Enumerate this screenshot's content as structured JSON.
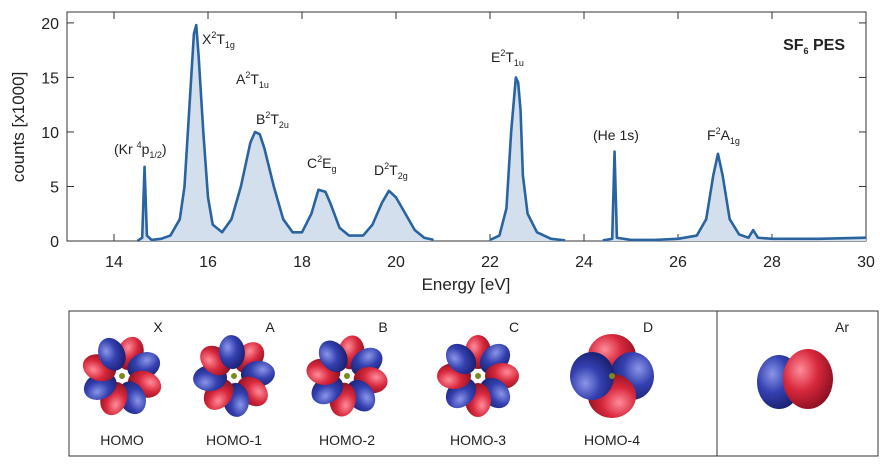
{
  "chart_data": {
    "type": "line",
    "title": [
      [
        "SF",
        ""
      ],
      [
        "6",
        "sub"
      ],
      [
        " PES",
        ""
      ]
    ],
    "xlabel": "Energy [eV]",
    "ylabel": "counts [x1000]",
    "xlim": [
      13,
      30
    ],
    "ylim": [
      0,
      21
    ],
    "xticks": [
      14,
      16,
      18,
      20,
      22,
      24,
      26,
      28,
      30
    ],
    "yticks": [
      0,
      5,
      10,
      15,
      20
    ],
    "color": "#2a64a0",
    "fill": "#d3dfec",
    "x": [
      14.5,
      14.6,
      14.65,
      14.7,
      14.8,
      15.0,
      15.2,
      15.4,
      15.5,
      15.6,
      15.7,
      15.75,
      15.8,
      15.9,
      16.0,
      16.1,
      16.3,
      16.5,
      16.7,
      16.9,
      17.0,
      17.1,
      17.2,
      17.4,
      17.6,
      17.8,
      18.0,
      18.2,
      18.35,
      18.5,
      18.6,
      18.8,
      19.0,
      19.3,
      19.5,
      19.7,
      19.85,
      20.0,
      20.2,
      20.4,
      20.6,
      20.8,
      21.4,
      22.0,
      22.2,
      22.35,
      22.45,
      22.55,
      22.6,
      22.65,
      22.7,
      22.8,
      23.0,
      23.3,
      23.6,
      24.0,
      24.4,
      24.6,
      24.65,
      24.7,
      25.0,
      25.5,
      26.0,
      26.4,
      26.6,
      26.75,
      26.85,
      26.95,
      27.1,
      27.3,
      27.5,
      27.6,
      27.7,
      28.0,
      29.0,
      30.0
    ],
    "values": [
      0,
      0.3,
      6.8,
      0.5,
      0.1,
      0.2,
      0.5,
      2,
      5,
      12,
      19,
      19.8,
      17,
      10,
      4,
      1.5,
      0.8,
      2,
      5,
      9,
      10,
      9.8,
      8.5,
      5,
      2,
      0.8,
      0.8,
      2.5,
      4.7,
      4.5,
      3.5,
      1.2,
      0.5,
      0.5,
      1.5,
      3.5,
      4.6,
      4,
      2.5,
      1,
      0.3,
      0.1,
      null,
      0.1,
      0.5,
      3,
      10,
      15,
      14.5,
      12,
      6,
      2.5,
      0.8,
      0.2,
      0.05,
      null,
      0.05,
      0.2,
      8.2,
      0.3,
      0.1,
      0.1,
      0.2,
      0.5,
      2,
      6,
      8,
      6,
      2,
      0.6,
      0.3,
      1,
      0.3,
      0.2,
      0.2,
      0.3
    ],
    "annotations": [
      [
        [
          "(Kr ",
          ""
        ],
        [
          "4",
          "sup"
        ],
        [
          "p",
          ""
        ],
        [
          "1/2",
          "sub"
        ],
        [
          ")",
          ""
        ]
      ],
      [
        [
          "X",
          ""
        ],
        [
          "2",
          "sup"
        ],
        [
          "T",
          ""
        ],
        [
          "1g",
          "sub"
        ]
      ],
      [
        [
          "A",
          ""
        ],
        [
          "2",
          "sup"
        ],
        [
          "T",
          ""
        ],
        [
          "1u",
          "sub"
        ]
      ],
      [
        [
          "B",
          ""
        ],
        [
          "2",
          "sup"
        ],
        [
          "T",
          ""
        ],
        [
          "2u",
          "sub"
        ]
      ],
      [
        [
          "C",
          ""
        ],
        [
          "2",
          "sup"
        ],
        [
          "E",
          ""
        ],
        [
          "g",
          "sub"
        ]
      ],
      [
        [
          "D",
          ""
        ],
        [
          "2",
          "sup"
        ],
        [
          "T",
          ""
        ],
        [
          "2g",
          "sub"
        ]
      ],
      [
        [
          "E",
          ""
        ],
        [
          "2",
          "sup"
        ],
        [
          "T",
          ""
        ],
        [
          "1u",
          "sub"
        ]
      ],
      [
        [
          "(He 1s)",
          ""
        ]
      ],
      [
        [
          "F",
          ""
        ],
        [
          "2",
          "sup"
        ],
        [
          "A",
          ""
        ],
        [
          "1g",
          "sub"
        ]
      ]
    ]
  },
  "orbitals": [
    {
      "letter": "X",
      "label": "HOMO"
    },
    {
      "letter": "A",
      "label": "HOMO-1"
    },
    {
      "letter": "B",
      "label": "HOMO-2"
    },
    {
      "letter": "C",
      "label": "HOMO-3"
    },
    {
      "letter": "D",
      "label": "HOMO-4"
    }
  ],
  "atom": {
    "letter": "Ar"
  }
}
